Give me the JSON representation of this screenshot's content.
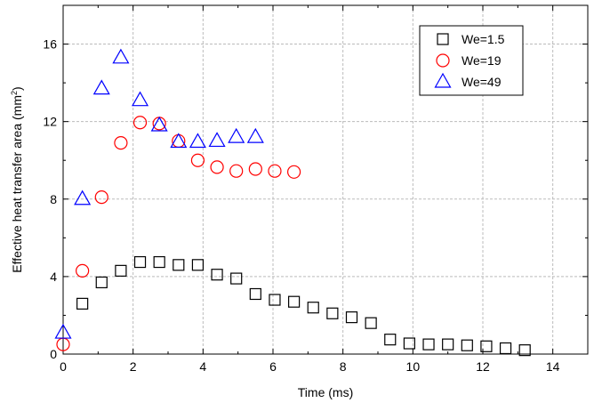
{
  "chart_data": {
    "type": "scatter",
    "xlabel": "Time (ms)",
    "ylabel_main": "Effective heat transfer area (mm",
    "ylabel_sup": "2",
    "ylabel_close": ")",
    "xlim": [
      0,
      15
    ],
    "ylim": [
      0,
      18
    ],
    "xticks": [
      0,
      2,
      4,
      6,
      8,
      10,
      12,
      14
    ],
    "yticks": [
      0,
      4,
      8,
      12,
      16
    ],
    "grid": true,
    "legend_position": "top-right",
    "series": [
      {
        "name": "We=1.5",
        "marker": "square",
        "color": "#000000",
        "x": [
          0.55,
          1.1,
          1.65,
          2.2,
          2.75,
          3.3,
          3.85,
          4.4,
          4.95,
          5.5,
          6.05,
          6.6,
          7.15,
          7.7,
          8.25,
          8.8,
          9.35,
          9.9,
          10.45,
          11.0,
          11.55,
          12.1,
          12.65,
          13.2
        ],
        "y": [
          2.6,
          3.7,
          4.3,
          4.75,
          4.75,
          4.6,
          4.6,
          4.1,
          3.9,
          3.1,
          2.8,
          2.7,
          2.4,
          2.1,
          1.9,
          1.6,
          0.75,
          0.55,
          0.5,
          0.5,
          0.45,
          0.4,
          0.3,
          0.2
        ]
      },
      {
        "name": "We=19",
        "marker": "circle",
        "color": "#ff0000",
        "x": [
          0.0,
          0.55,
          1.1,
          1.65,
          2.2,
          2.75,
          3.3,
          3.85,
          4.4,
          4.95,
          5.5,
          6.05,
          6.6
        ],
        "y": [
          0.5,
          4.3,
          8.1,
          10.9,
          11.95,
          11.9,
          11.0,
          10.0,
          9.65,
          9.45,
          9.55,
          9.45,
          9.4
        ]
      },
      {
        "name": "We=49",
        "marker": "triangle",
        "color": "#0000ff",
        "x": [
          0.0,
          0.55,
          1.1,
          1.65,
          2.2,
          2.75,
          3.3,
          3.85,
          4.4,
          4.95,
          5.5
        ],
        "y": [
          1.1,
          8.0,
          13.7,
          15.3,
          13.1,
          11.8,
          10.95,
          10.95,
          11.0,
          11.2,
          11.2
        ]
      }
    ]
  }
}
